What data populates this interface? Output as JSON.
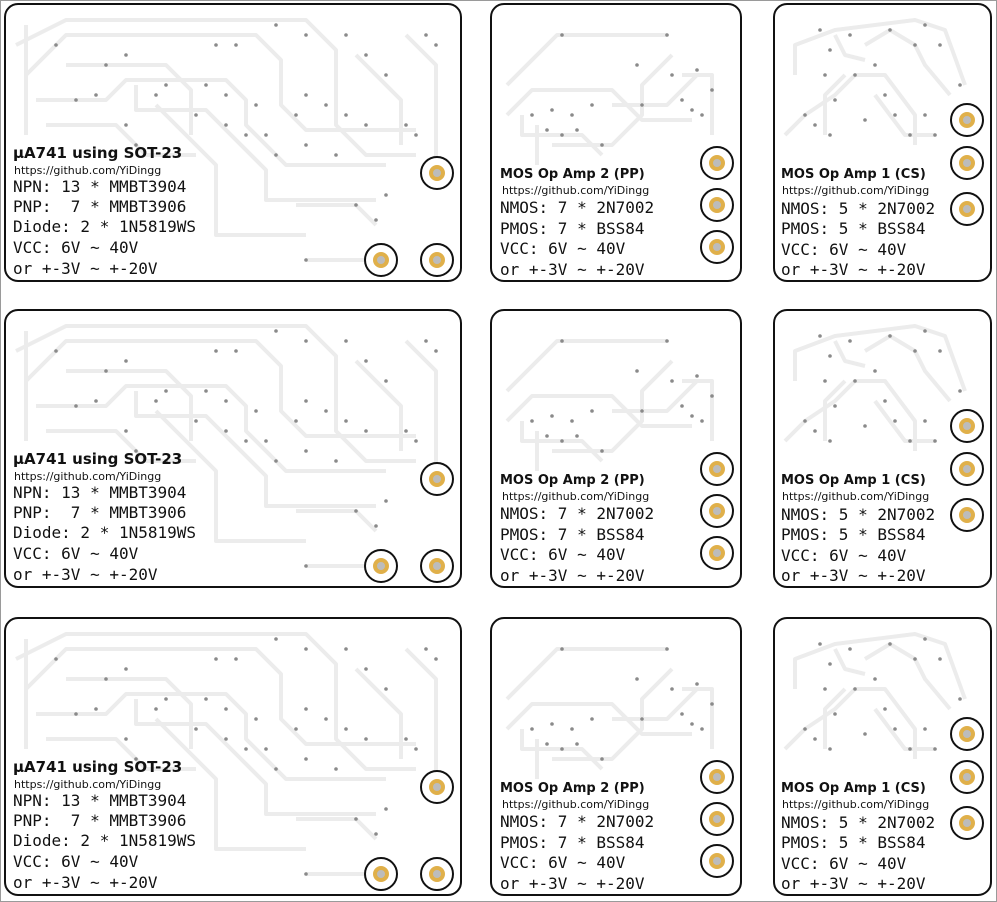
{
  "ua741": {
    "title": "µA741 using SOT-23",
    "url": "https://github.com/YiDingg",
    "lines": [
      "NPN: 13 * MMBT3904",
      "PNP:  7 * MMBT3906",
      "Diode: 2 * 1N5819WS",
      "VCC: 6V ~ 40V",
      "or +-3V ~ +-20V"
    ]
  },
  "mos_pp": {
    "title": "MOS Op Amp 2 (PP)",
    "url": "https://github.com/YiDingg",
    "lines": [
      "NMOS: 7 * 2N7002",
      "PMOS: 7 * BSS84",
      "VCC: 6V ~ 40V",
      "or +-3V ~ +-20V"
    ]
  },
  "mos_cs": {
    "title": "MOS Op Amp 1 (CS)",
    "url": "https://github.com/YiDingg",
    "lines": [
      "NMOS: 5 * 2N7002",
      "PMOS: 5 * BSS84",
      "VCC: 6V ~ 40V",
      "or +-3V ~ +-20V"
    ]
  },
  "colors": {
    "board_outline": "#111111",
    "trace": "#ececec",
    "pad_ring": "#e0b04a",
    "via": "#8a8a8a"
  }
}
